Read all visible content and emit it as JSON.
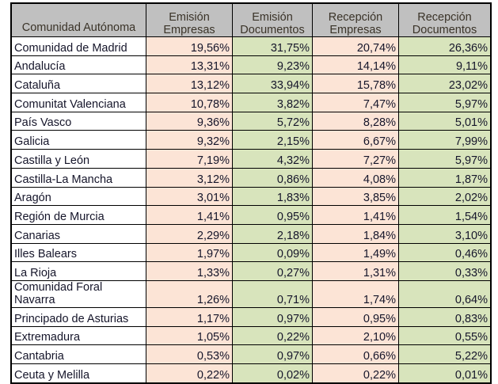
{
  "colors": {
    "header": "#c0c0c0",
    "empresas": "#fce4d6",
    "documentos": "#d8e4bc"
  },
  "headers": [
    "Comunidad Autónoma",
    [
      "Emisión",
      "Empresas"
    ],
    [
      "Emisión",
      "Documentos"
    ],
    [
      "Recepción",
      "Empresas"
    ],
    [
      "Recepción",
      "Documentos"
    ]
  ],
  "rows": [
    [
      "Comunidad de Madrid",
      "19,56%",
      "31,75%",
      "20,74%",
      "26,36%"
    ],
    [
      "Andalucía",
      "13,31%",
      "9,23%",
      "14,14%",
      "9,11%"
    ],
    [
      "Cataluña",
      "13,12%",
      "33,94%",
      "15,78%",
      "23,02%"
    ],
    [
      "Comunitat Valenciana",
      "10,78%",
      "3,82%",
      "7,47%",
      "5,97%"
    ],
    [
      "País Vasco",
      "9,36%",
      "5,72%",
      "8,28%",
      "5,01%"
    ],
    [
      "Galicia",
      "9,32%",
      "2,15%",
      "6,67%",
      "7,99%"
    ],
    [
      "Castilla y León",
      "7,19%",
      "4,32%",
      "7,27%",
      "5,97%"
    ],
    [
      "Castilla-La Mancha",
      "3,12%",
      "0,86%",
      "4,08%",
      "1,87%"
    ],
    [
      "Aragón",
      "3,01%",
      "1,83%",
      "3,85%",
      "2,02%"
    ],
    [
      "Región de Murcia",
      "1,41%",
      "0,95%",
      "1,41%",
      "1,54%"
    ],
    [
      "Canarias",
      "2,29%",
      "2,18%",
      "1,84%",
      "3,10%"
    ],
    [
      "Illes Balears",
      "1,97%",
      "0,09%",
      "1,49%",
      "0,46%"
    ],
    [
      "La Rioja",
      "1,33%",
      "0,27%",
      "1,31%",
      "0,33%"
    ],
    [
      "Comunidad Foral Navarra",
      "1,26%",
      "0,71%",
      "1,74%",
      "0,64%"
    ],
    [
      "Principado de Asturias",
      "1,17%",
      "0,97%",
      "0,95%",
      "0,83%"
    ],
    [
      "Extremadura",
      "1,05%",
      "0,22%",
      "2,10%",
      "0,55%"
    ],
    [
      "Cantabria",
      "0,53%",
      "0,97%",
      "0,66%",
      "5,22%"
    ],
    [
      "Ceuta y Melilla",
      "0,22%",
      "0,02%",
      "0,22%",
      "0,01%"
    ]
  ]
}
